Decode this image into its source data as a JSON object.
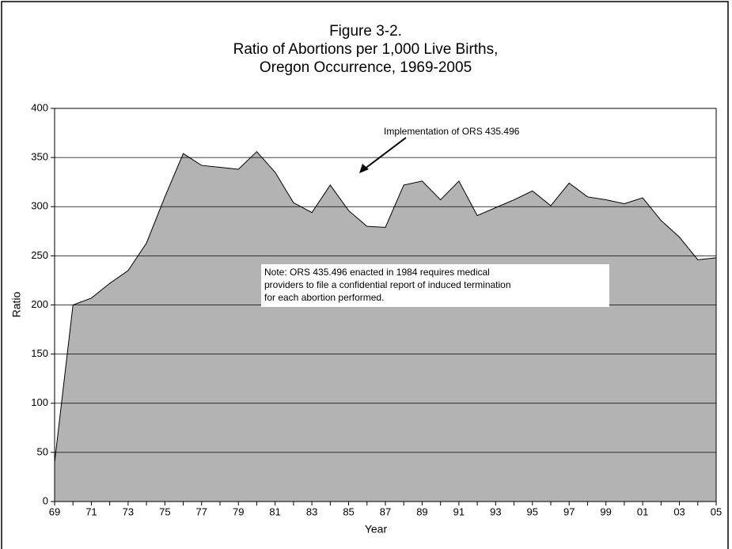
{
  "chart_data": {
    "type": "area",
    "title": [
      "Figure 3-2.",
      "Ratio of Abortions per 1,000 Live Births,",
      "Oregon Occurrence, 1969-2005"
    ],
    "x_label": "Year",
    "y_label": "Ratio",
    "categories": [
      "69",
      null,
      "71",
      null,
      "73",
      null,
      "75",
      null,
      "77",
      null,
      "79",
      null,
      "81",
      null,
      "83",
      null,
      "85",
      null,
      "87",
      null,
      "89",
      null,
      "91",
      null,
      "93",
      null,
      "95",
      null,
      "97",
      null,
      "99",
      null,
      "01",
      null,
      "03",
      null,
      "05"
    ],
    "values": [
      40,
      200,
      207,
      222,
      235,
      263,
      310,
      354,
      342,
      340,
      338,
      356,
      335,
      304,
      294,
      322,
      296,
      280,
      279,
      322,
      326,
      307,
      326,
      291,
      299,
      307,
      316,
      301,
      324,
      310,
      307,
      303,
      309,
      286,
      269,
      246,
      248
    ],
    "color": "#b3b3b3",
    "ylim": [
      0,
      400
    ],
    "yticks": [
      0,
      50,
      100,
      150,
      200,
      250,
      300,
      350,
      400
    ],
    "grid": true,
    "annotations": [
      "Implementation of ORS 435.496"
    ],
    "note": [
      "Note:  ORS 435.496 enacted in 1984 requires medical",
      "providers to file a confidential report of induced termination",
      " for each abortion performed."
    ]
  }
}
